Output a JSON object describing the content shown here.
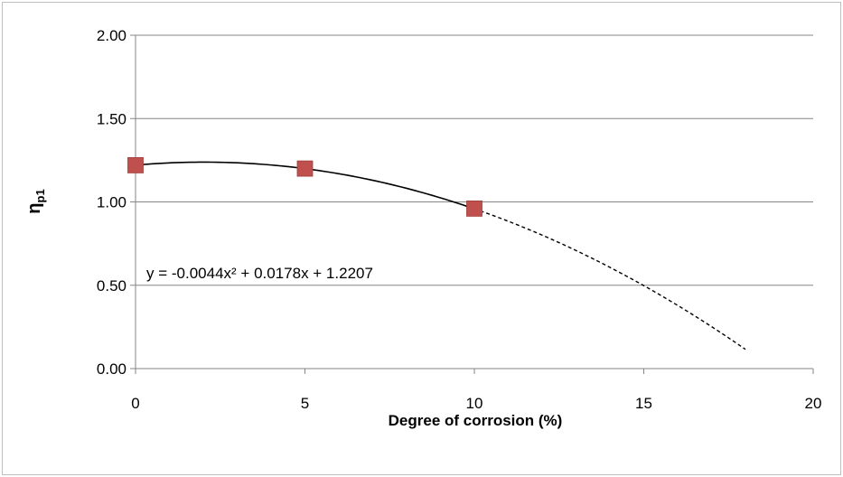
{
  "chart_data": {
    "type": "scatter",
    "title": "",
    "xlabel": "Degree of corrosion (%)",
    "ylabel_main": "η",
    "ylabel_sub": "p1",
    "xlim": [
      0,
      20
    ],
    "ylim": [
      0,
      2
    ],
    "x_ticks": [
      0,
      5,
      10,
      15,
      20
    ],
    "x_tick_labels": [
      "0",
      "5",
      "10",
      "15",
      "20"
    ],
    "y_ticks": [
      0,
      0.5,
      1,
      1.5,
      2
    ],
    "y_tick_labels": [
      "0.00",
      "0.50",
      "1.00",
      "1.50",
      "2.00"
    ],
    "grid": "horizontal",
    "legend": "none",
    "series": [
      {
        "marker": "square",
        "color": "#c0504d",
        "points": [
          {
            "x": 0,
            "y": 1.22
          },
          {
            "x": 5,
            "y": 1.2
          },
          {
            "x": 10,
            "y": 0.96
          }
        ]
      }
    ],
    "trendline": {
      "kind": "polynomial",
      "order": 2,
      "coefficients": [
        -0.0044,
        0.0178,
        1.2207
      ],
      "solid_range": [
        0,
        10
      ],
      "dashed_range": [
        10,
        18
      ],
      "color": "#000000",
      "equation_label": "y = -0.0044x² + 0.0178x + 1.2207"
    }
  }
}
